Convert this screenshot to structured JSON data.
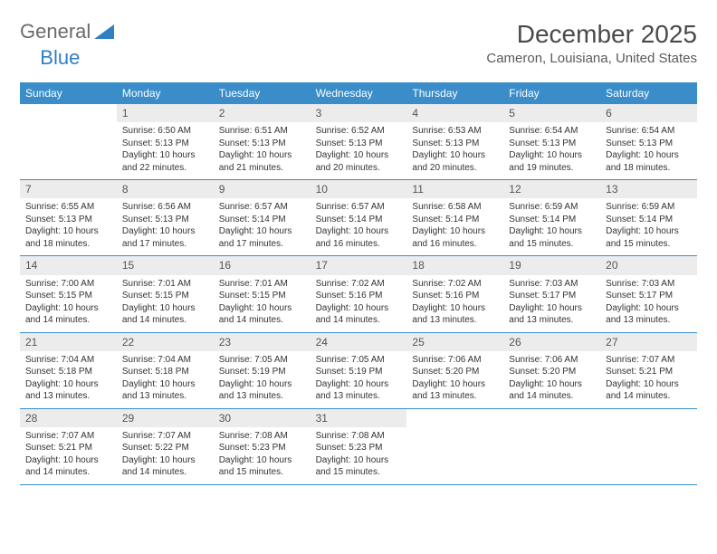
{
  "logo": {
    "text1": "General",
    "text2": "Blue"
  },
  "title": "December 2025",
  "location": "Cameron, Louisiana, United States",
  "colors": {
    "header_bg": "#3a8dc9",
    "header_text": "#ffffff",
    "daynum_bg": "#ececec",
    "border": "#3a8dc9",
    "text": "#333333",
    "logo_gray": "#6b6b6b",
    "logo_blue": "#2f7fc2"
  },
  "dow": [
    "Sunday",
    "Monday",
    "Tuesday",
    "Wednesday",
    "Thursday",
    "Friday",
    "Saturday"
  ],
  "weeks": [
    [
      {
        "n": "",
        "sr": "",
        "ss": "",
        "dl": ""
      },
      {
        "n": "1",
        "sr": "Sunrise: 6:50 AM",
        "ss": "Sunset: 5:13 PM",
        "dl": "Daylight: 10 hours and 22 minutes."
      },
      {
        "n": "2",
        "sr": "Sunrise: 6:51 AM",
        "ss": "Sunset: 5:13 PM",
        "dl": "Daylight: 10 hours and 21 minutes."
      },
      {
        "n": "3",
        "sr": "Sunrise: 6:52 AM",
        "ss": "Sunset: 5:13 PM",
        "dl": "Daylight: 10 hours and 20 minutes."
      },
      {
        "n": "4",
        "sr": "Sunrise: 6:53 AM",
        "ss": "Sunset: 5:13 PM",
        "dl": "Daylight: 10 hours and 20 minutes."
      },
      {
        "n": "5",
        "sr": "Sunrise: 6:54 AM",
        "ss": "Sunset: 5:13 PM",
        "dl": "Daylight: 10 hours and 19 minutes."
      },
      {
        "n": "6",
        "sr": "Sunrise: 6:54 AM",
        "ss": "Sunset: 5:13 PM",
        "dl": "Daylight: 10 hours and 18 minutes."
      }
    ],
    [
      {
        "n": "7",
        "sr": "Sunrise: 6:55 AM",
        "ss": "Sunset: 5:13 PM",
        "dl": "Daylight: 10 hours and 18 minutes."
      },
      {
        "n": "8",
        "sr": "Sunrise: 6:56 AM",
        "ss": "Sunset: 5:13 PM",
        "dl": "Daylight: 10 hours and 17 minutes."
      },
      {
        "n": "9",
        "sr": "Sunrise: 6:57 AM",
        "ss": "Sunset: 5:14 PM",
        "dl": "Daylight: 10 hours and 17 minutes."
      },
      {
        "n": "10",
        "sr": "Sunrise: 6:57 AM",
        "ss": "Sunset: 5:14 PM",
        "dl": "Daylight: 10 hours and 16 minutes."
      },
      {
        "n": "11",
        "sr": "Sunrise: 6:58 AM",
        "ss": "Sunset: 5:14 PM",
        "dl": "Daylight: 10 hours and 16 minutes."
      },
      {
        "n": "12",
        "sr": "Sunrise: 6:59 AM",
        "ss": "Sunset: 5:14 PM",
        "dl": "Daylight: 10 hours and 15 minutes."
      },
      {
        "n": "13",
        "sr": "Sunrise: 6:59 AM",
        "ss": "Sunset: 5:14 PM",
        "dl": "Daylight: 10 hours and 15 minutes."
      }
    ],
    [
      {
        "n": "14",
        "sr": "Sunrise: 7:00 AM",
        "ss": "Sunset: 5:15 PM",
        "dl": "Daylight: 10 hours and 14 minutes."
      },
      {
        "n": "15",
        "sr": "Sunrise: 7:01 AM",
        "ss": "Sunset: 5:15 PM",
        "dl": "Daylight: 10 hours and 14 minutes."
      },
      {
        "n": "16",
        "sr": "Sunrise: 7:01 AM",
        "ss": "Sunset: 5:15 PM",
        "dl": "Daylight: 10 hours and 14 minutes."
      },
      {
        "n": "17",
        "sr": "Sunrise: 7:02 AM",
        "ss": "Sunset: 5:16 PM",
        "dl": "Daylight: 10 hours and 14 minutes."
      },
      {
        "n": "18",
        "sr": "Sunrise: 7:02 AM",
        "ss": "Sunset: 5:16 PM",
        "dl": "Daylight: 10 hours and 13 minutes."
      },
      {
        "n": "19",
        "sr": "Sunrise: 7:03 AM",
        "ss": "Sunset: 5:17 PM",
        "dl": "Daylight: 10 hours and 13 minutes."
      },
      {
        "n": "20",
        "sr": "Sunrise: 7:03 AM",
        "ss": "Sunset: 5:17 PM",
        "dl": "Daylight: 10 hours and 13 minutes."
      }
    ],
    [
      {
        "n": "21",
        "sr": "Sunrise: 7:04 AM",
        "ss": "Sunset: 5:18 PM",
        "dl": "Daylight: 10 hours and 13 minutes."
      },
      {
        "n": "22",
        "sr": "Sunrise: 7:04 AM",
        "ss": "Sunset: 5:18 PM",
        "dl": "Daylight: 10 hours and 13 minutes."
      },
      {
        "n": "23",
        "sr": "Sunrise: 7:05 AM",
        "ss": "Sunset: 5:19 PM",
        "dl": "Daylight: 10 hours and 13 minutes."
      },
      {
        "n": "24",
        "sr": "Sunrise: 7:05 AM",
        "ss": "Sunset: 5:19 PM",
        "dl": "Daylight: 10 hours and 13 minutes."
      },
      {
        "n": "25",
        "sr": "Sunrise: 7:06 AM",
        "ss": "Sunset: 5:20 PM",
        "dl": "Daylight: 10 hours and 13 minutes."
      },
      {
        "n": "26",
        "sr": "Sunrise: 7:06 AM",
        "ss": "Sunset: 5:20 PM",
        "dl": "Daylight: 10 hours and 14 minutes."
      },
      {
        "n": "27",
        "sr": "Sunrise: 7:07 AM",
        "ss": "Sunset: 5:21 PM",
        "dl": "Daylight: 10 hours and 14 minutes."
      }
    ],
    [
      {
        "n": "28",
        "sr": "Sunrise: 7:07 AM",
        "ss": "Sunset: 5:21 PM",
        "dl": "Daylight: 10 hours and 14 minutes."
      },
      {
        "n": "29",
        "sr": "Sunrise: 7:07 AM",
        "ss": "Sunset: 5:22 PM",
        "dl": "Daylight: 10 hours and 14 minutes."
      },
      {
        "n": "30",
        "sr": "Sunrise: 7:08 AM",
        "ss": "Sunset: 5:23 PM",
        "dl": "Daylight: 10 hours and 15 minutes."
      },
      {
        "n": "31",
        "sr": "Sunrise: 7:08 AM",
        "ss": "Sunset: 5:23 PM",
        "dl": "Daylight: 10 hours and 15 minutes."
      },
      {
        "n": "",
        "sr": "",
        "ss": "",
        "dl": ""
      },
      {
        "n": "",
        "sr": "",
        "ss": "",
        "dl": ""
      },
      {
        "n": "",
        "sr": "",
        "ss": "",
        "dl": ""
      }
    ]
  ]
}
